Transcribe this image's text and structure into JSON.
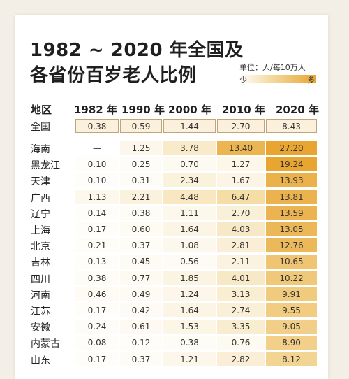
{
  "title_line1": "1982 ~ 2020 年全国及",
  "title_line2": "各省份百岁老人比例",
  "legend": {
    "unit": "单位：人/每10万人",
    "low": "少",
    "high": "多"
  },
  "colors": {
    "low": "#ffffff",
    "mid": "#f4dba0",
    "high": "#e8a532",
    "border": "#bfa57a"
  },
  "chart_data": {
    "type": "table",
    "title": "1982 ~ 2020 年全国及各省份百岁老人比例",
    "unit": "单位：人/每10万人",
    "row_header": "地区",
    "columns": [
      "1982 年",
      "1990 年",
      "2000 年",
      "2010 年",
      "2020 年"
    ],
    "rows": [
      {
        "region": "全国",
        "values": [
          "0.38",
          "0.59",
          "1.44",
          "2.70",
          "8.43"
        ]
      },
      {
        "region": "海南",
        "values": [
          "—",
          "1.25",
          "3.78",
          "13.40",
          "27.20"
        ]
      },
      {
        "region": "黑龙江",
        "values": [
          "0.10",
          "0.25",
          "0.70",
          "1.27",
          "19.24"
        ]
      },
      {
        "region": "天津",
        "values": [
          "0.10",
          "0.31",
          "2.34",
          "1.67",
          "13.93"
        ]
      },
      {
        "region": "广西",
        "values": [
          "1.13",
          "2.21",
          "4.48",
          "6.47",
          "13.81"
        ]
      },
      {
        "region": "辽宁",
        "values": [
          "0.14",
          "0.38",
          "1.11",
          "2.70",
          "13.59"
        ]
      },
      {
        "region": "上海",
        "values": [
          "0.17",
          "0.60",
          "1.64",
          "4.03",
          "13.05"
        ]
      },
      {
        "region": "北京",
        "values": [
          "0.21",
          "0.37",
          "1.08",
          "2.81",
          "12.76"
        ]
      },
      {
        "region": "吉林",
        "values": [
          "0.13",
          "0.45",
          "0.56",
          "2.11",
          "10.65"
        ]
      },
      {
        "region": "四川",
        "values": [
          "0.38",
          "0.77",
          "1.85",
          "4.01",
          "10.22"
        ]
      },
      {
        "region": "河南",
        "values": [
          "0.46",
          "0.49",
          "1.24",
          "3.13",
          "9.91"
        ]
      },
      {
        "region": "江苏",
        "values": [
          "0.17",
          "0.42",
          "1.64",
          "2.74",
          "9.55"
        ]
      },
      {
        "region": "安徽",
        "values": [
          "0.24",
          "0.61",
          "1.53",
          "3.35",
          "9.05"
        ]
      },
      {
        "region": "内蒙古",
        "values": [
          "0.08",
          "0.12",
          "0.38",
          "0.76",
          "8.90"
        ]
      },
      {
        "region": "山东",
        "values": [
          "0.17",
          "0.37",
          "1.21",
          "2.82",
          "8.12"
        ]
      }
    ]
  }
}
